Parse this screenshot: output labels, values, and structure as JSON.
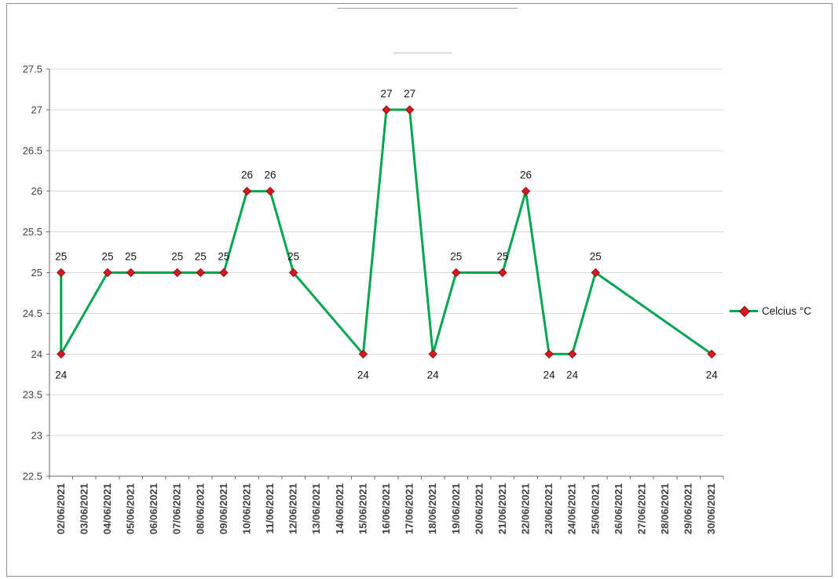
{
  "chart_data": {
    "type": "line",
    "title": "",
    "categories": [
      "02/06/2021",
      "03/06/2021",
      "04/06/2021",
      "05/06/2021",
      "06/06/2021",
      "07/06/2021",
      "08/06/2021",
      "09/06/2021",
      "10/06/2021",
      "11/06/2021",
      "12/06/2021",
      "13/06/2021",
      "14/06/2021",
      "15/06/2021",
      "16/06/2021",
      "17/06/2021",
      "18/06/2021",
      "19/06/2021",
      "20/06/2021",
      "21/06/2021",
      "22/06/2021",
      "23/06/2021",
      "24/06/2021",
      "25/06/2021",
      "26/06/2021",
      "27/06/2021",
      "28/06/2021",
      "29/06/2021",
      "30/06/2021"
    ],
    "series": [
      {
        "name": "Celcius °C",
        "points": [
          [
            0,
            25
          ],
          [
            0,
            24
          ],
          [
            2,
            25
          ],
          [
            3,
            25
          ],
          [
            5,
            25
          ],
          [
            6,
            25
          ],
          [
            7,
            25
          ],
          [
            8,
            26
          ],
          [
            9,
            26
          ],
          [
            10,
            25
          ],
          [
            13,
            24
          ],
          [
            14,
            27
          ],
          [
            15,
            27
          ],
          [
            16,
            24
          ],
          [
            17,
            25
          ],
          [
            19,
            25
          ],
          [
            20,
            26
          ],
          [
            21,
            24
          ],
          [
            22,
            24
          ],
          [
            23,
            25
          ],
          [
            28,
            24
          ]
        ]
      }
    ],
    "y_axis": {
      "min": 22.5,
      "max": 27.5,
      "step": 0.5,
      "tick_labels": [
        "22.5",
        "23",
        "23.5",
        "24",
        "24.5",
        "25",
        "25.5",
        "26",
        "26.5",
        "27",
        "27.5"
      ]
    },
    "x_axis": {
      "label_rotation": -90
    },
    "grid": true,
    "legend": {
      "label": "Celcius °C",
      "position": "right"
    },
    "data_labels": {
      "show": true,
      "below_value": 24
    },
    "colors": {
      "line": "#00A551",
      "marker": "#D8191F",
      "marker_border": "#8E1014",
      "grid": "#D9D9D9",
      "axis": "#6B6B6B",
      "tick_text": "#3F3F3F",
      "data_label": "#141414"
    }
  }
}
